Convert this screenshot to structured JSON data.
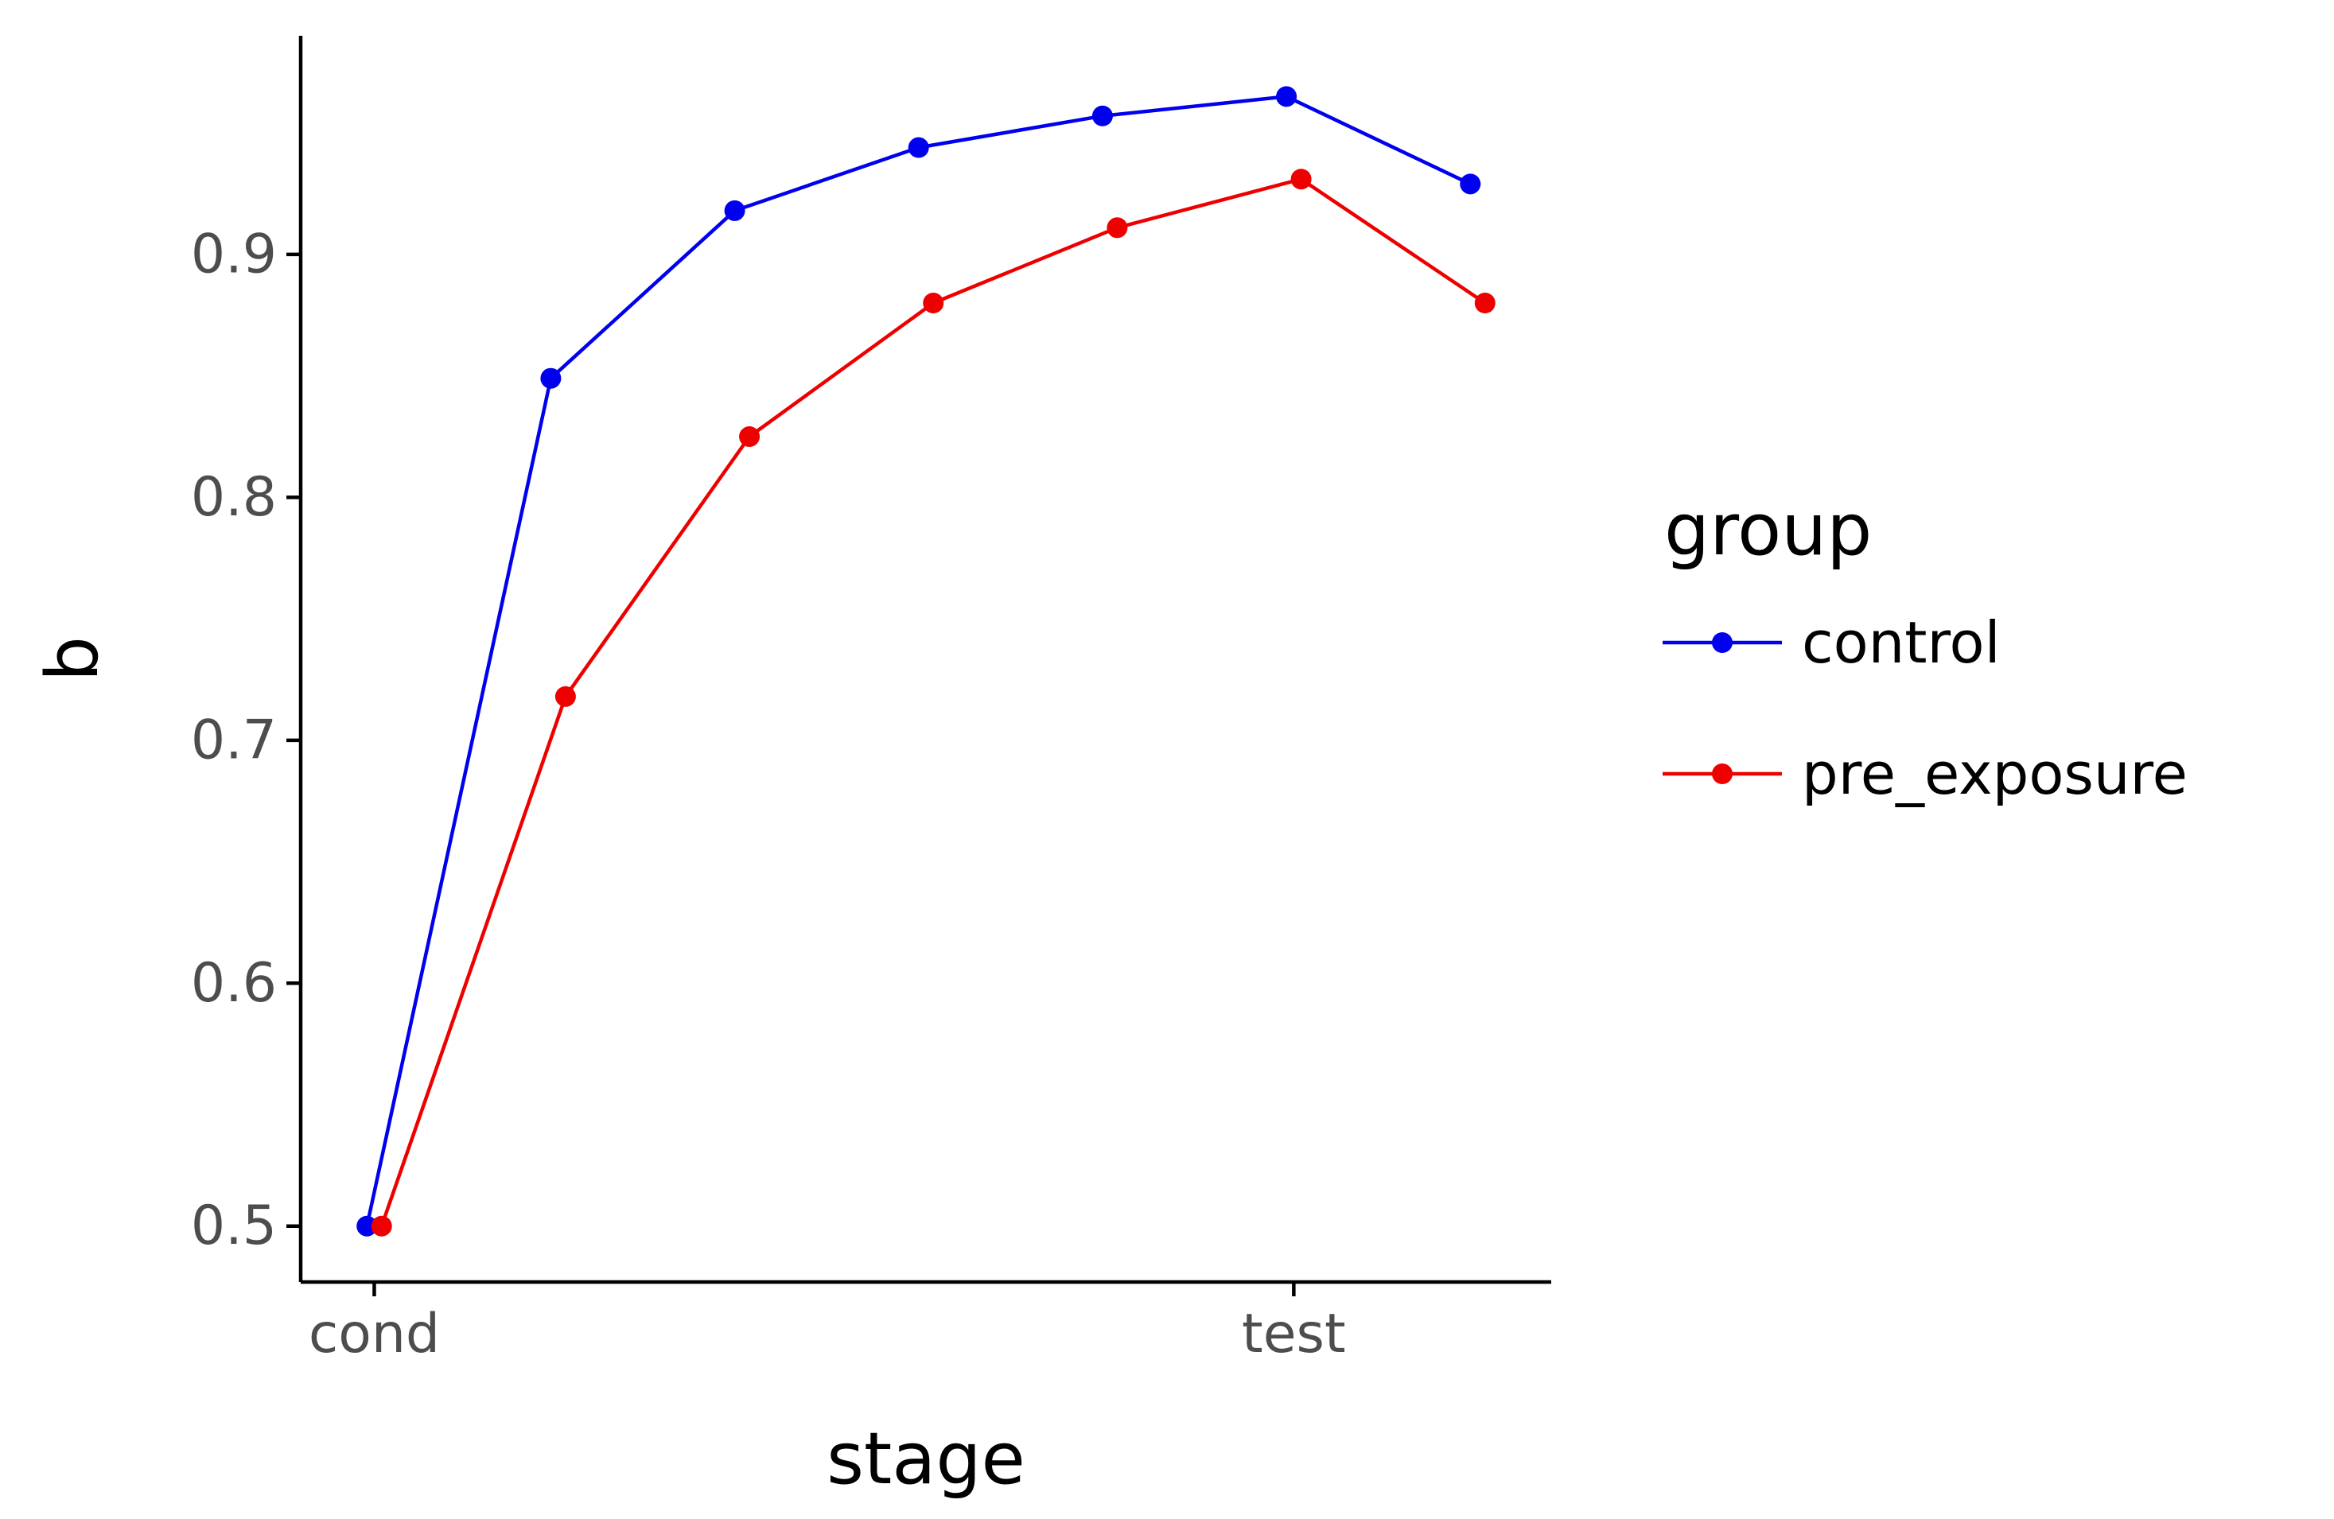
{
  "chart_data": {
    "type": "line",
    "xlabel": "stage",
    "ylabel": "b",
    "x_tick_labels": [
      "cond",
      "test"
    ],
    "x_tick_positions": [
      1,
      6
    ],
    "y_ticks": [
      0.5,
      0.6,
      0.7,
      0.8,
      0.9
    ],
    "y_tick_labels": [
      "0.5",
      "0.6",
      "0.7",
      "0.8",
      "0.9"
    ],
    "xlim": [
      0.6,
      7.4
    ],
    "ylim": [
      0.477,
      0.99
    ],
    "grid": false,
    "legend": {
      "title": "group",
      "placement": "right"
    },
    "series": [
      {
        "name": "control",
        "color": "#0000ee",
        "x": [
          1,
          2,
          3,
          4,
          5,
          6,
          7
        ],
        "y": [
          0.5,
          0.849,
          0.918,
          0.944,
          0.957,
          0.965,
          0.929
        ],
        "dodge": -0.04
      },
      {
        "name": "pre_exposure",
        "color": "#ee0000",
        "x": [
          1,
          2,
          3,
          4,
          5,
          6,
          7
        ],
        "y": [
          0.5,
          0.718,
          0.825,
          0.88,
          0.911,
          0.931,
          0.88
        ],
        "dodge": 0.04
      }
    ]
  }
}
